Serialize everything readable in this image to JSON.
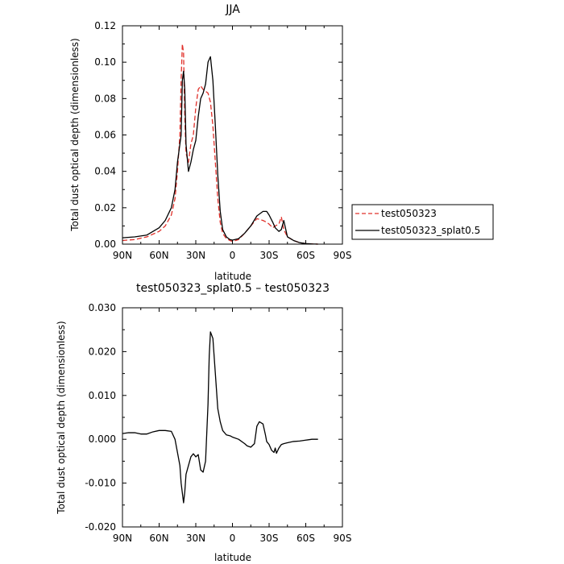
{
  "chart_data": [
    {
      "type": "line",
      "title": "JJA",
      "xlabel": "latitude",
      "ylabel": "Total dust optical depth (dimensionless)",
      "xlim": [
        90,
        -90
      ],
      "ylim": [
        0,
        0.12
      ],
      "xticks": [
        90,
        60,
        30,
        0,
        -30,
        -60,
        -90
      ],
      "xtick_labels": [
        "90N",
        "60N",
        "30N",
        "0",
        "30S",
        "60S",
        "90S"
      ],
      "yticks": [
        0,
        0.02,
        0.04,
        0.06,
        0.08,
        0.1,
        0.12
      ],
      "ytick_labels": [
        "0.00",
        "0.02",
        "0.04",
        "0.06",
        "0.08",
        "0.10",
        "0.12"
      ],
      "grid": false,
      "legend": "right",
      "series": [
        {
          "name": "test050323",
          "color": "#e0302a",
          "dash": "dashed",
          "x": [
            90,
            80,
            70,
            60,
            55,
            50,
            47,
            45,
            43,
            42,
            41,
            40,
            39,
            38,
            36,
            34,
            32,
            30,
            28,
            26,
            24,
            22,
            20,
            18,
            16,
            14,
            12,
            10,
            8,
            5,
            2,
            0,
            -5,
            -10,
            -15,
            -20,
            -25,
            -28,
            -30,
            -33,
            -35,
            -38,
            -40,
            -42,
            -45,
            -50,
            -55,
            -60,
            -65,
            -70
          ],
          "y": [
            0.002,
            0.0025,
            0.004,
            0.007,
            0.01,
            0.016,
            0.025,
            0.04,
            0.06,
            0.09,
            0.11,
            0.105,
            0.07,
            0.05,
            0.045,
            0.055,
            0.06,
            0.075,
            0.085,
            0.087,
            0.085,
            0.084,
            0.083,
            0.078,
            0.065,
            0.045,
            0.025,
            0.012,
            0.006,
            0.003,
            0.002,
            0.0015,
            0.0025,
            0.006,
            0.01,
            0.014,
            0.013,
            0.012,
            0.011,
            0.009,
            0.01,
            0.011,
            0.015,
            0.008,
            0.004,
            0.002,
            0.0008,
            0.0003,
            0.0001,
            0.0
          ]
        },
        {
          "name": "test050323_splat0.5",
          "color": "#000000",
          "dash": "solid",
          "x": [
            90,
            80,
            70,
            60,
            55,
            50,
            47,
            45,
            43,
            42,
            41,
            40,
            39,
            38,
            36,
            34,
            32,
            30,
            28,
            26,
            24,
            22,
            20,
            18,
            16,
            14,
            12,
            10,
            8,
            5,
            2,
            0,
            -5,
            -10,
            -15,
            -20,
            -25,
            -28,
            -30,
            -33,
            -35,
            -38,
            -40,
            -42,
            -45,
            -50,
            -55,
            -60,
            -65,
            -70
          ],
          "y": [
            0.0035,
            0.004,
            0.005,
            0.009,
            0.013,
            0.02,
            0.03,
            0.045,
            0.055,
            0.06,
            0.09,
            0.095,
            0.085,
            0.055,
            0.04,
            0.045,
            0.052,
            0.057,
            0.07,
            0.08,
            0.083,
            0.088,
            0.1,
            0.103,
            0.09,
            0.065,
            0.038,
            0.018,
            0.008,
            0.004,
            0.0025,
            0.0022,
            0.003,
            0.006,
            0.01,
            0.0155,
            0.018,
            0.018,
            0.016,
            0.012,
            0.009,
            0.007,
            0.008,
            0.013,
            0.004,
            0.002,
            0.0008,
            0.0003,
            0.0001,
            0.0
          ]
        }
      ]
    },
    {
      "type": "line",
      "title": "test050323_splat0.5 – test050323",
      "xlabel": "latitude",
      "ylabel": "Total dust optical depth (dimensionless)",
      "xlim": [
        90,
        -90
      ],
      "ylim": [
        -0.02,
        0.03
      ],
      "xticks": [
        90,
        60,
        30,
        0,
        -30,
        -60,
        -90
      ],
      "xtick_labels": [
        "90N",
        "60N",
        "30N",
        "0",
        "30S",
        "60S",
        "90S"
      ],
      "yticks": [
        -0.02,
        -0.01,
        0,
        0.01,
        0.02,
        0.03
      ],
      "ytick_labels": [
        "-0.020",
        "-0.010",
        "0.000",
        "0.010",
        "0.020",
        "0.030"
      ],
      "grid": false,
      "series": [
        {
          "color": "#000000",
          "dash": "solid",
          "x": [
            90,
            85,
            80,
            75,
            70,
            65,
            60,
            55,
            50,
            47,
            45,
            43,
            42,
            40,
            39,
            38,
            36,
            34,
            32,
            30,
            28,
            26,
            24,
            22,
            20,
            19,
            18,
            16,
            14,
            12,
            10,
            8,
            5,
            2,
            0,
            -5,
            -10,
            -12,
            -15,
            -18,
            -20,
            -22,
            -25,
            -27,
            -28,
            -30,
            -32,
            -34,
            -35,
            -36,
            -38,
            -40,
            -42,
            -45,
            -50,
            -55,
            -60,
            -65,
            -70
          ],
          "y": [
            0.0013,
            0.0015,
            0.0015,
            0.0012,
            0.0012,
            0.0017,
            0.002,
            0.002,
            0.0018,
            0.0,
            -0.003,
            -0.006,
            -0.01,
            -0.0145,
            -0.012,
            -0.008,
            -0.006,
            -0.004,
            -0.0033,
            -0.004,
            -0.0035,
            -0.007,
            -0.0075,
            -0.005,
            0.008,
            0.019,
            0.0245,
            0.023,
            0.015,
            0.007,
            0.004,
            0.002,
            0.001,
            0.0008,
            0.0005,
            0.0,
            -0.001,
            -0.0015,
            -0.0018,
            -0.001,
            0.003,
            0.004,
            0.0035,
            0.001,
            -0.0005,
            -0.0012,
            -0.0025,
            -0.003,
            -0.002,
            -0.0032,
            -0.002,
            -0.0012,
            -0.001,
            -0.0008,
            -0.0005,
            -0.0004,
            -0.0002,
            0.0,
            0.0
          ]
        }
      ]
    }
  ]
}
